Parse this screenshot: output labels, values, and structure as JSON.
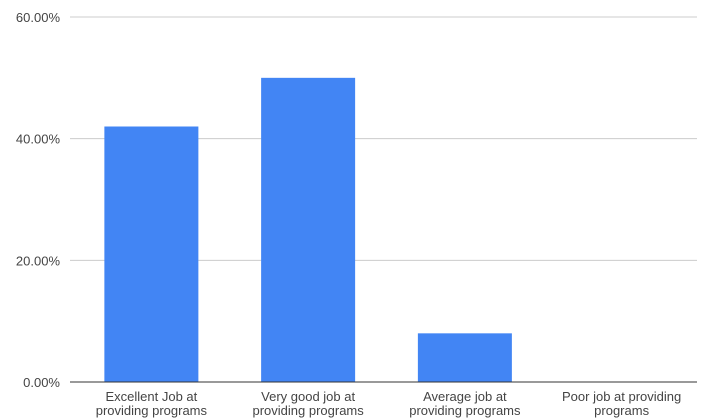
{
  "chart_data": {
    "type": "bar",
    "title": "",
    "xlabel": "",
    "ylabel": "",
    "categories": [
      [
        "Excellent Job at",
        "providing programs"
      ],
      [
        "Very good job at",
        "providing programs"
      ],
      [
        "Average job at",
        "providing programs"
      ],
      [
        "Poor job at providing",
        "programs"
      ]
    ],
    "values": [
      42,
      50,
      8,
      0
    ],
    "ylim": [
      0,
      60
    ],
    "yticks": [
      0,
      20,
      40,
      60
    ],
    "ytick_labels": [
      "0.00%",
      "20.00%",
      "40.00%",
      "60.00%"
    ],
    "grid": true,
    "legend": "none",
    "bar_color": "#4285F4",
    "grid_color": "#cccccc",
    "axis_color": "#333333"
  }
}
